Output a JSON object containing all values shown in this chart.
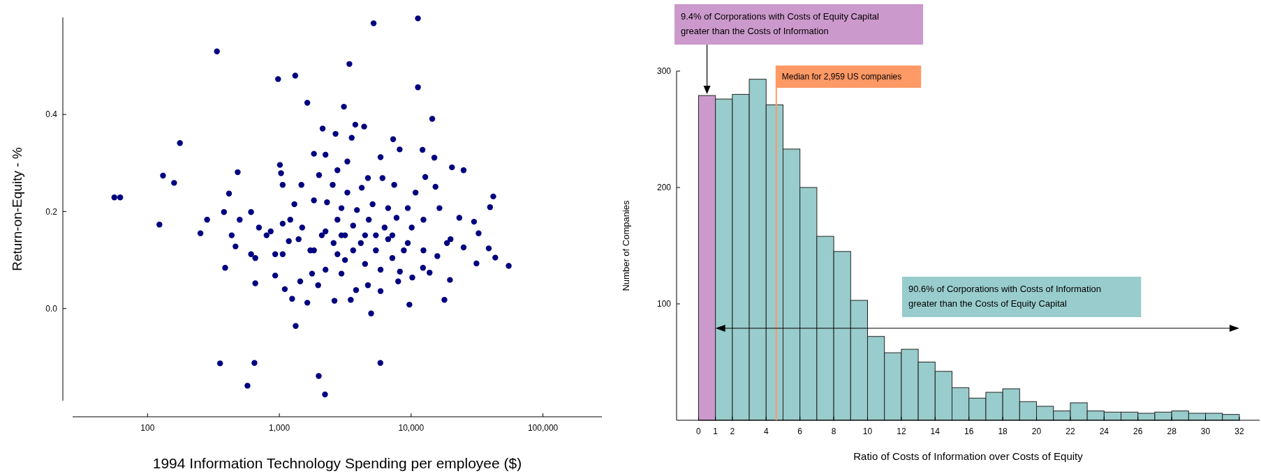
{
  "chart_data": [
    {
      "type": "scatter",
      "xlabel": "1994 Information Technology Spending per employee ($)",
      "ylabel": "Return-on-Equity - %",
      "log": "x",
      "marker": "circle",
      "color": "#000080",
      "grid": false,
      "xlim": [
        27,
        280000
      ],
      "xticks": [
        {
          "value": 100,
          "label": "100"
        },
        {
          "value": 1000,
          "label": "1,000"
        },
        {
          "value": 10000,
          "label": "10,000"
        },
        {
          "value": 100000,
          "label": "100,000"
        }
      ],
      "ylim": [
        -0.19,
        0.6
      ],
      "yticks": [
        {
          "value": 0,
          "label": "0.0"
        },
        {
          "value": 0.2,
          "label": "0.2"
        },
        {
          "value": 0.4,
          "label": "0.4"
        }
      ],
      "x": [
        56,
        62,
        123,
        131,
        159,
        176,
        252,
        283,
        336,
        355,
        388,
        483,
        415,
        573,
        647,
        657,
        978,
        1010,
        1320,
        1330,
        1630,
        1990,
        2220,
        3090,
        3400,
        5190,
        4970,
        5840,
        11260,
        11260,
        14450,
        9700,
        17880,
        20400,
        25000,
        42000,
        39700,
        43500,
        55000,
        31300,
        38800,
        30000,
        32500,
        19700,
        13800,
        3770,
        4400,
        3540,
        2670,
        2130,
        1830,
        2240,
        3280,
        2760,
        7300,
        8180,
        5860,
        12200,
        15000,
        12800,
        6060,
        4700,
        2540,
        1470,
        1060,
        1030,
        2000,
        3280,
        4220,
        7440,
        10800,
        15300,
        16400,
        23200,
        25000,
        18700,
        12400,
        8800,
        7200,
        5400,
        4150,
        3150,
        2580,
        2100,
        1720,
        1400,
        1060,
        860,
        700,
        610,
        500,
        435,
        380,
        465,
        610,
        930,
        1100,
        1250,
        1630,
        1970,
        2620,
        3480,
        3820,
        4700,
        5860,
        7970,
        10200,
        12300,
        8220,
        5860,
        4470,
        3150,
        2240,
        1770,
        1440,
        2240,
        2760,
        3630,
        4770,
        6290,
        7750,
        10100,
        12400,
        9430,
        6690,
        5400,
        3630,
        2760,
        1830,
        1490,
        1210,
        1060,
        1300,
        1830,
        2300,
        2960,
        3880,
        5100,
        6690,
        9430,
        7200,
        4470,
        2960,
        800,
        657,
        930,
        1180,
        2960,
        19900,
        15800
      ],
      "values": [
        0.229,
        0.229,
        0.173,
        0.274,
        0.259,
        0.341,
        0.155,
        0.183,
        0.53,
        -0.113,
        0.084,
        0.281,
        0.237,
        -0.159,
        -0.112,
        0.052,
        0.473,
        0.296,
        0.48,
        -0.036,
        0.424,
        -0.139,
        -0.177,
        0.416,
        0.504,
        0.588,
        -0.01,
        -0.112,
        0.598,
        0.456,
        0.391,
        0.008,
        0.018,
        0.291,
        0.285,
        0.231,
        0.209,
        0.105,
        0.088,
        0.093,
        0.124,
        0.179,
        0.155,
        0.059,
        0.074,
        0.379,
        0.375,
        0.352,
        0.36,
        0.371,
        0.319,
        0.317,
        0.303,
        0.285,
        0.349,
        0.328,
        0.312,
        0.327,
        0.311,
        0.271,
        0.269,
        0.269,
        0.255,
        0.255,
        0.255,
        0.279,
        0.275,
        0.239,
        0.249,
        0.255,
        0.239,
        0.251,
        0.207,
        0.187,
        0.126,
        0.135,
        0.12,
        0.12,
        0.104,
        0.12,
        0.135,
        0.151,
        0.135,
        0.151,
        0.12,
        0.143,
        0.112,
        0.159,
        0.167,
        0.199,
        0.183,
        0.151,
        0.199,
        0.128,
        0.112,
        0.068,
        0.04,
        0.02,
        0.012,
        0.048,
        0.016,
        0.018,
        0.038,
        0.048,
        0.036,
        0.056,
        0.064,
        0.084,
        0.076,
        0.08,
        0.092,
        0.1,
        0.08,
        0.072,
        0.056,
        0.159,
        0.183,
        0.171,
        0.183,
        0.167,
        0.187,
        0.167,
        0.183,
        0.135,
        0.143,
        0.151,
        0.12,
        0.112,
        0.12,
        0.167,
        0.183,
        0.175,
        0.215,
        0.223,
        0.219,
        0.207,
        0.203,
        0.215,
        0.207,
        0.207,
        0.151,
        0.151,
        0.151,
        0.151,
        0.104,
        0.112,
        0.139,
        0.072,
        0.143,
        0.108
      ]
    },
    {
      "type": "histogram",
      "xlabel": "Ratio of Costs of Information over Costs of Equity",
      "ylabel": "Number of Companies",
      "grid": false,
      "bins": [
        0,
        1,
        2,
        3,
        4,
        5,
        6,
        7,
        8,
        9,
        10,
        11,
        12,
        13,
        14,
        15,
        16,
        17,
        18,
        19,
        20,
        21,
        22,
        23,
        24,
        25,
        26,
        27,
        28,
        29,
        30,
        31,
        32
      ],
      "values": [
        279,
        276,
        280,
        293,
        271,
        233,
        200,
        158,
        145,
        103,
        72,
        58,
        61,
        50,
        42,
        28,
        19,
        24,
        27,
        16,
        12,
        8,
        15,
        8,
        7,
        7,
        6,
        7,
        8,
        6,
        6,
        5
      ],
      "colors": [
        "#cc99cc",
        "#99cccc",
        "#99cccc",
        "#99cccc",
        "#99cccc",
        "#99cccc",
        "#99cccc",
        "#99cccc",
        "#99cccc",
        "#99cccc",
        "#99cccc",
        "#99cccc",
        "#99cccc",
        "#99cccc",
        "#99cccc",
        "#99cccc",
        "#99cccc",
        "#99cccc",
        "#99cccc",
        "#99cccc",
        "#99cccc",
        "#99cccc",
        "#99cccc",
        "#99cccc",
        "#99cccc",
        "#99cccc",
        "#99cccc",
        "#99cccc",
        "#99cccc",
        "#99cccc",
        "#99cccc",
        "#99cccc"
      ],
      "xlim": [
        -1.3,
        33.2
      ],
      "xticks": [
        0,
        1,
        2,
        4,
        6,
        8,
        10,
        12,
        14,
        16,
        18,
        20,
        22,
        24,
        26,
        28,
        30,
        32
      ],
      "ylim": [
        0,
        300
      ],
      "yticks": [
        100,
        200,
        300
      ],
      "ref_lines": [
        {
          "axis": "x",
          "value": 4.6,
          "label": "Median for 2,959 US companies",
          "color": "#ff9966"
        }
      ],
      "annotations": [
        "9.4% of Corporations with Costs of Equity Capital greater than the Costs of Information",
        "90.6% of Corporations with Costs of Information greater than the Costs of Equity Capital"
      ]
    }
  ]
}
